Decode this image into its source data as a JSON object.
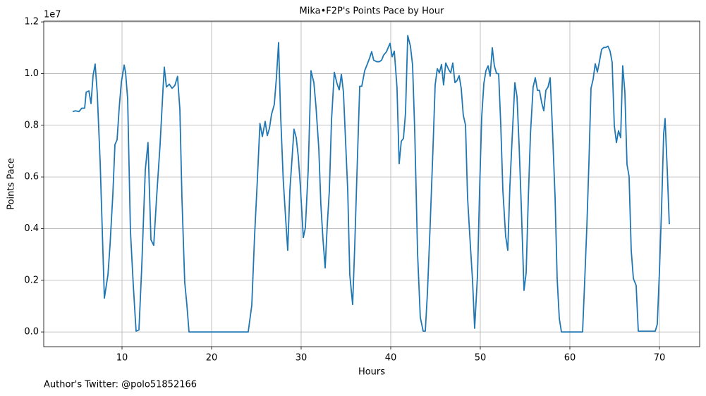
{
  "chart_data": {
    "type": "line",
    "title": "Mika•F2P's Points Pace by Hour",
    "x_label": "Hours",
    "y_label": "Points Pace",
    "y_offset_label": "1e7",
    "footnote": "Author's Twitter: @polo51852166",
    "color": "#1f77b4",
    "grid": true,
    "xlim": [
      1.26,
      74.49
    ],
    "ylim": [
      -0.057,
      1.203
    ],
    "xticks": [
      10,
      20,
      30,
      40,
      50,
      60,
      70
    ],
    "yticks": [
      {
        "value": 0,
        "label": "0.0"
      },
      0.2,
      0.4,
      0.6,
      0.8,
      {
        "value": 1,
        "label": "1.0"
      },
      1.2
    ],
    "x": [
      4.49,
      4.8,
      5.2,
      5.5,
      5.83,
      6.0,
      6.3,
      6.54,
      6.77,
      7.0,
      7.24,
      7.56,
      8.03,
      8.43,
      8.66,
      8.98,
      9.21,
      9.45,
      9.69,
      9.92,
      10.24,
      10.4,
      10.63,
      10.94,
      11.26,
      11.57,
      11.89,
      12.2,
      12.6,
      12.9,
      13.23,
      13.54,
      13.86,
      14.25,
      14.57,
      14.72,
      14.96,
      15.28,
      15.59,
      15.9,
      16.2,
      16.46,
      16.69,
      17.0,
      17.24,
      17.48,
      24.09,
      24.49,
      24.8,
      25.1,
      25.4,
      25.67,
      25.98,
      26.22,
      26.46,
      26.69,
      27.0,
      27.24,
      27.48,
      27.7,
      28.0,
      28.27,
      28.5,
      28.74,
      28.98,
      29.2,
      29.45,
      29.68,
      29.92,
      30.24,
      30.47,
      30.79,
      31.1,
      31.42,
      31.65,
      31.97,
      32.2,
      32.44,
      32.68,
      32.91,
      33.15,
      33.39,
      33.7,
      34.0,
      34.25,
      34.49,
      34.72,
      34.96,
      35.2,
      35.43,
      35.75,
      35.98,
      36.22,
      36.54,
      36.77,
      37.09,
      37.4,
      37.64,
      37.87,
      38.1,
      38.43,
      38.74,
      38.98,
      39.2,
      39.53,
      39.92,
      40.16,
      40.4,
      40.7,
      40.94,
      41.18,
      41.42,
      41.65,
      41.9,
      42.2,
      42.44,
      42.68,
      43.0,
      43.3,
      43.62,
      43.86,
      44.1,
      44.4,
      44.72,
      44.96,
      45.2,
      45.43,
      45.67,
      45.9,
      46.14,
      46.46,
      46.7,
      46.93,
      47.17,
      47.4,
      47.64,
      47.87,
      48.1,
      48.35,
      48.58,
      48.9,
      49.13,
      49.37,
      49.69,
      49.92,
      50.16,
      50.4,
      50.63,
      50.87,
      51.1,
      51.34,
      51.57,
      51.81,
      52.05,
      52.28,
      52.52,
      52.83,
      53.07,
      53.3,
      53.54,
      53.86,
      54.1,
      54.33,
      54.57,
      54.88,
      55.12,
      55.35,
      55.6,
      55.9,
      56.14,
      56.38,
      56.61,
      56.85,
      57.09,
      57.32,
      57.56,
      57.8,
      58.03,
      58.35,
      58.58,
      58.82,
      59.06,
      61.42,
      61.65,
      61.9,
      62.13,
      62.36,
      62.6,
      62.83,
      63.07,
      63.3,
      63.54,
      63.78,
      64.0,
      64.25,
      64.49,
      64.72,
      64.96,
      65.2,
      65.43,
      65.67,
      65.9,
      66.14,
      66.38,
      66.61,
      66.85,
      67.09,
      67.4,
      67.64,
      69.53,
      69.76,
      70.0,
      70.24,
      70.47,
      70.63,
      70.87,
      71.1
    ],
    "values": [
      0.853,
      0.856,
      0.853,
      0.866,
      0.866,
      0.928,
      0.933,
      0.884,
      0.993,
      1.037,
      0.922,
      0.657,
      0.131,
      0.221,
      0.335,
      0.534,
      0.725,
      0.744,
      0.869,
      0.965,
      1.033,
      1.003,
      0.902,
      0.392,
      0.18,
      0.003,
      0.008,
      0.248,
      0.627,
      0.733,
      0.357,
      0.335,
      0.52,
      0.725,
      0.935,
      1.025,
      0.948,
      0.959,
      0.943,
      0.954,
      0.989,
      0.861,
      0.52,
      0.193,
      0.106,
      0,
      0,
      0.104,
      0.371,
      0.581,
      0.807,
      0.756,
      0.815,
      0.76,
      0.788,
      0.842,
      0.88,
      0.985,
      1.12,
      0.847,
      0.589,
      0.439,
      0.316,
      0.548,
      0.67,
      0.785,
      0.752,
      0.678,
      0.561,
      0.365,
      0.403,
      0.629,
      1.011,
      0.965,
      0.875,
      0.711,
      0.493,
      0.357,
      0.248,
      0.411,
      0.548,
      0.82,
      1.005,
      0.962,
      0.937,
      0.997,
      0.929,
      0.738,
      0.548,
      0.221,
      0.106,
      0.33,
      0.602,
      0.951,
      0.951,
      1.011,
      1.038,
      1.06,
      1.085,
      1.052,
      1.046,
      1.046,
      1.052,
      1.071,
      1.085,
      1.117,
      1.065,
      1.087,
      0.946,
      0.651,
      0.738,
      0.749,
      0.847,
      1.147,
      1.106,
      1.033,
      0.779,
      0.302,
      0.057,
      0.003,
      0.003,
      0.153,
      0.411,
      0.711,
      0.956,
      1.019,
      1.003,
      1.035,
      0.956,
      1.041,
      1.016,
      1.003,
      1.041,
      0.965,
      0.973,
      0.992,
      0.943,
      0.839,
      0.801,
      0.52,
      0.33,
      0.202,
      0.014,
      0.221,
      0.548,
      0.834,
      0.962,
      1.011,
      1.03,
      0.99,
      1.1,
      1.03,
      1.001,
      0.999,
      0.807,
      0.548,
      0.371,
      0.316,
      0.561,
      0.738,
      0.965,
      0.91,
      0.725,
      0.493,
      0.161,
      0.229,
      0.507,
      0.766,
      0.948,
      0.984,
      0.935,
      0.935,
      0.888,
      0.856,
      0.935,
      0.948,
      0.984,
      0.807,
      0.52,
      0.207,
      0.052,
      0,
      0,
      0.193,
      0.411,
      0.657,
      0.943,
      0.978,
      1.038,
      1.006,
      1.046,
      1.093,
      1.101,
      1.101,
      1.106,
      1.087,
      1.044,
      0.799,
      0.733,
      0.779,
      0.752,
      1.03,
      0.929,
      0.648,
      0.602,
      0.316,
      0.207,
      0.18,
      0.003,
      0.003,
      0.03,
      0.234,
      0.48,
      0.766,
      0.826,
      0.629,
      0.417
    ]
  }
}
